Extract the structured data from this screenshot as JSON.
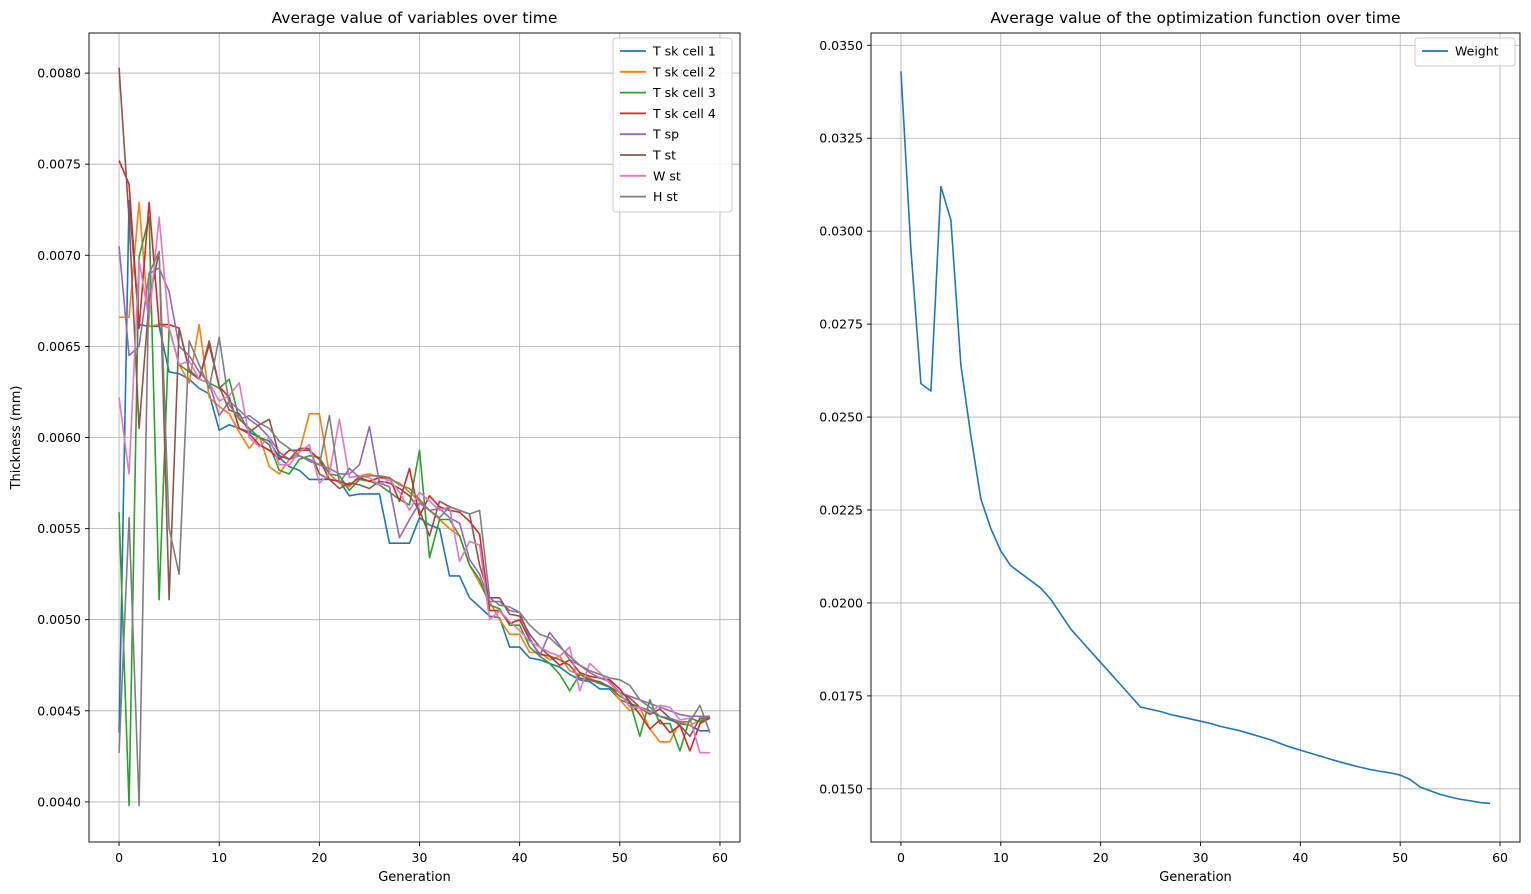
{
  "chart_data": [
    {
      "type": "line",
      "title": "Average value of variables over time",
      "xlabel": "Generation",
      "ylabel": "Thickness (mm)",
      "xlim": [
        -3,
        62
      ],
      "ylim": [
        0.00378,
        0.00822
      ],
      "xticks": [
        0,
        10,
        20,
        30,
        40,
        50,
        60
      ],
      "yticks": [
        0.004,
        0.0045,
        0.005,
        0.0055,
        0.006,
        0.0065,
        0.007,
        0.0075,
        0.008
      ],
      "ytick_labels": [
        "0.0040",
        "0.0045",
        "0.0050",
        "0.0055",
        "0.0060",
        "0.0065",
        "0.0070",
        "0.0075",
        "0.0080"
      ],
      "grid": true,
      "legend_position": "top-right",
      "x": [
        0,
        1,
        2,
        3,
        4,
        5,
        6,
        7,
        8,
        9,
        10,
        11,
        12,
        13,
        14,
        15,
        16,
        17,
        18,
        19,
        20,
        21,
        22,
        23,
        24,
        25,
        26,
        27,
        28,
        29,
        30,
        31,
        32,
        33,
        34,
        35,
        36,
        37,
        38,
        39,
        40,
        41,
        42,
        43,
        44,
        45,
        46,
        47,
        48,
        49,
        50,
        51,
        52,
        53,
        54,
        55,
        56,
        57,
        58,
        59
      ],
      "series": [
        {
          "name": "T sk cell 1",
          "color": "#1f77b4",
          "values": [
            0.00438,
            0.0073,
            0.00662,
            0.00661,
            0.00661,
            0.00636,
            0.00635,
            0.00632,
            0.00627,
            0.00624,
            0.00604,
            0.00607,
            0.00605,
            0.00603,
            0.006,
            0.00598,
            0.00589,
            0.00584,
            0.00582,
            0.00577,
            0.00577,
            0.00577,
            0.00576,
            0.00568,
            0.00569,
            0.00569,
            0.00569,
            0.00542,
            0.00542,
            0.00542,
            0.00556,
            0.00552,
            0.0055,
            0.00524,
            0.00524,
            0.00512,
            0.00507,
            0.00502,
            0.00501,
            0.00485,
            0.00485,
            0.00479,
            0.00478,
            0.00476,
            0.00474,
            0.0047,
            0.00467,
            0.00466,
            0.00462,
            0.00462,
            0.00456,
            0.00454,
            0.00452,
            0.0045,
            0.00447,
            0.00445,
            0.00443,
            0.00442,
            0.00439,
            0.00439
          ]
        },
        {
          "name": "T sk cell 2",
          "color": "#ff7f0e",
          "values": [
            0.00666,
            0.00666,
            0.00729,
            0.00661,
            0.00662,
            0.0066,
            0.0064,
            0.0063,
            0.00662,
            0.00622,
            0.00617,
            0.00613,
            0.00603,
            0.00594,
            0.00601,
            0.00584,
            0.0058,
            0.00588,
            0.00592,
            0.00613,
            0.00613,
            0.0058,
            0.00575,
            0.00573,
            0.00579,
            0.0058,
            0.00578,
            0.00577,
            0.00575,
            0.0057,
            0.00565,
            0.0056,
            0.00555,
            0.0055,
            0.00546,
            0.0053,
            0.0052,
            0.0051,
            0.005,
            0.00492,
            0.00492,
            0.00482,
            0.00482,
            0.00478,
            0.0048,
            0.00472,
            0.0047,
            0.00468,
            0.00465,
            0.00463,
            0.00456,
            0.0045,
            0.00452,
            0.0044,
            0.00433,
            0.00433,
            0.00444,
            0.00442,
            0.00445,
            0.00446
          ]
        },
        {
          "name": "T sk cell 3",
          "color": "#2ca02c",
          "values": [
            0.00559,
            0.00398,
            0.00699,
            0.00721,
            0.00511,
            0.0066,
            0.0064,
            0.00636,
            0.00632,
            0.0063,
            0.00627,
            0.00632,
            0.0061,
            0.00605,
            0.006,
            0.00596,
            0.00582,
            0.0058,
            0.00588,
            0.0059,
            0.00589,
            0.0058,
            0.00579,
            0.00571,
            0.00577,
            0.00576,
            0.00574,
            0.0057,
            0.00566,
            0.00563,
            0.00593,
            0.00534,
            0.00555,
            0.00555,
            0.00546,
            0.0053,
            0.00522,
            0.00508,
            0.00506,
            0.00497,
            0.00497,
            0.00485,
            0.0048,
            0.00476,
            0.0047,
            0.00461,
            0.0047,
            0.00467,
            0.00465,
            0.00463,
            0.00458,
            0.00455,
            0.00436,
            0.00456,
            0.00443,
            0.00443,
            0.00428,
            0.00446,
            0.00444,
            0.00447
          ]
        },
        {
          "name": "T sk cell 4",
          "color": "#d62728",
          "values": [
            0.00752,
            0.00739,
            0.0066,
            0.00729,
            0.00662,
            0.00662,
            0.0066,
            0.00637,
            0.00632,
            0.00651,
            0.00628,
            0.00622,
            0.00605,
            0.00602,
            0.00596,
            0.00593,
            0.00588,
            0.00593,
            0.00593,
            0.00593,
            0.00588,
            0.00577,
            0.00576,
            0.00574,
            0.00578,
            0.00576,
            0.00578,
            0.00578,
            0.00565,
            0.00583,
            0.00557,
            0.00568,
            0.00562,
            0.0056,
            0.00559,
            0.00554,
            0.00547,
            0.00505,
            0.00505,
            0.00498,
            0.005,
            0.00489,
            0.00481,
            0.0048,
            0.00475,
            0.00478,
            0.00471,
            0.00469,
            0.00468,
            0.00467,
            0.00462,
            0.00455,
            0.00448,
            0.0044,
            0.00445,
            0.00438,
            0.00442,
            0.00428,
            0.00443,
            0.00446
          ]
        },
        {
          "name": "T sp",
          "color": "#9467bd",
          "values": [
            0.00705,
            0.00645,
            0.0065,
            0.0069,
            0.00693,
            0.0068,
            0.0065,
            0.00645,
            0.00636,
            0.0063,
            0.00612,
            0.0062,
            0.00615,
            0.0061,
            0.00606,
            0.006,
            0.00592,
            0.00588,
            0.0059,
            0.00588,
            0.00585,
            0.00583,
            0.0058,
            0.0058,
            0.00585,
            0.00606,
            0.00575,
            0.00573,
            0.00545,
            0.00555,
            0.00564,
            0.0056,
            0.00561,
            0.00556,
            0.00553,
            0.00533,
            0.00525,
            0.0051,
            0.0051,
            0.00505,
            0.00504,
            0.0049,
            0.0048,
            0.00493,
            0.00486,
            0.00478,
            0.00475,
            0.00471,
            0.00468,
            0.00466,
            0.0046,
            0.00458,
            0.00456,
            0.00454,
            0.00452,
            0.0045,
            0.00448,
            0.00447,
            0.00447,
            0.00447
          ]
        },
        {
          "name": "T st",
          "color": "#8c564b",
          "values": [
            0.00803,
            0.0072,
            0.00605,
            0.00675,
            0.00702,
            0.00511,
            0.0066,
            0.00637,
            0.00632,
            0.00653,
            0.00628,
            0.00615,
            0.00613,
            0.00603,
            0.00607,
            0.0061,
            0.0059,
            0.00588,
            0.00594,
            0.00594,
            0.0058,
            0.00577,
            0.00572,
            0.00575,
            0.00574,
            0.00572,
            0.00576,
            0.00575,
            0.00572,
            0.00568,
            0.0056,
            0.00546,
            0.00565,
            0.00562,
            0.0056,
            0.00558,
            0.0053,
            0.00512,
            0.00512,
            0.00503,
            0.00502,
            0.00492,
            0.00485,
            0.0048,
            0.00478,
            0.00475,
            0.00468,
            0.00467,
            0.00466,
            0.00463,
            0.0046,
            0.00457,
            0.00452,
            0.00448,
            0.00451,
            0.00446,
            0.00442,
            0.00436,
            0.00446,
            0.00446
          ]
        },
        {
          "name": "W st",
          "color": "#e377c2",
          "values": [
            0.00622,
            0.0058,
            0.00697,
            0.00665,
            0.00721,
            0.0066,
            0.0064,
            0.00642,
            0.00632,
            0.0063,
            0.0062,
            0.00623,
            0.0063,
            0.006,
            0.00595,
            0.006,
            0.00585,
            0.00585,
            0.00592,
            0.00596,
            0.00575,
            0.0058,
            0.0061,
            0.00578,
            0.00579,
            0.00578,
            0.00574,
            0.00577,
            0.0057,
            0.0056,
            0.0057,
            0.00565,
            0.0056,
            0.00562,
            0.00532,
            0.00543,
            0.00541,
            0.005,
            0.00505,
            0.00499,
            0.00494,
            0.00488,
            0.00485,
            0.00482,
            0.0048,
            0.00485,
            0.00461,
            0.00476,
            0.00471,
            0.00465,
            0.0046,
            0.00452,
            0.00452,
            0.00449,
            0.00453,
            0.00452,
            0.00445,
            0.00446,
            0.00427,
            0.00427
          ]
        },
        {
          "name": "H st",
          "color": "#7f7f7f",
          "values": [
            0.00427,
            0.00556,
            0.00398,
            0.0069,
            0.00702,
            0.0055,
            0.00525,
            0.00653,
            0.0064,
            0.00627,
            0.00655,
            0.00618,
            0.0061,
            0.00612,
            0.00608,
            0.00605,
            0.00598,
            0.00594,
            0.0059,
            0.00587,
            0.00585,
            0.00612,
            0.00575,
            0.00583,
            0.00578,
            0.00579,
            0.00579,
            0.00578,
            0.00574,
            0.00572,
            0.00566,
            0.0056,
            0.00556,
            0.00562,
            0.0056,
            0.00558,
            0.0056,
            0.00512,
            0.00508,
            0.00507,
            0.00504,
            0.00497,
            0.00492,
            0.0049,
            0.00485,
            0.0048,
            0.00475,
            0.00472,
            0.0047,
            0.00468,
            0.00467,
            0.00464,
            0.00456,
            0.00452,
            0.00447,
            0.00446,
            0.00444,
            0.00444,
            0.00453,
            0.00438
          ]
        }
      ]
    },
    {
      "type": "line",
      "title": "Average value of the optimization function over time",
      "xlabel": "Generation",
      "ylabel": "",
      "xlim": [
        -3,
        62
      ],
      "ylim": [
        0.01357,
        0.03533
      ],
      "xticks": [
        0,
        10,
        20,
        30,
        40,
        50,
        60
      ],
      "yticks": [
        0.015,
        0.0175,
        0.02,
        0.0225,
        0.025,
        0.0275,
        0.03,
        0.0325,
        0.035
      ],
      "ytick_labels": [
        "0.0150",
        "0.0175",
        "0.0200",
        "0.0225",
        "0.0250",
        "0.0275",
        "0.0300",
        "0.0325",
        "0.0350"
      ],
      "grid": true,
      "legend_position": "top-right",
      "x": [
        0,
        1,
        2,
        3,
        4,
        5,
        6,
        7,
        8,
        9,
        10,
        11,
        12,
        13,
        14,
        15,
        16,
        17,
        18,
        19,
        20,
        21,
        22,
        23,
        24,
        25,
        26,
        27,
        28,
        29,
        30,
        31,
        32,
        33,
        34,
        35,
        36,
        37,
        38,
        39,
        40,
        41,
        42,
        43,
        44,
        45,
        46,
        47,
        48,
        49,
        50,
        51,
        52,
        53,
        54,
        55,
        56,
        57,
        58,
        59
      ],
      "series": [
        {
          "name": "Weight",
          "color": "#1f77b4",
          "values": [
            0.0343,
            0.0295,
            0.0259,
            0.0257,
            0.0312,
            0.0303,
            0.0264,
            0.0245,
            0.0228,
            0.022,
            0.0214,
            0.021,
            0.0208,
            0.0206,
            0.0204,
            0.0201,
            0.0197,
            0.0193,
            0.019,
            0.0187,
            0.0184,
            0.0181,
            0.0178,
            0.0175,
            0.0172,
            0.01714,
            0.01708,
            0.017,
            0.01694,
            0.01688,
            0.01682,
            0.01676,
            0.01668,
            0.01662,
            0.01656,
            0.01648,
            0.0164,
            0.01632,
            0.01622,
            0.01612,
            0.01604,
            0.01596,
            0.01588,
            0.0158,
            0.01572,
            0.01565,
            0.01558,
            0.01552,
            0.01547,
            0.01543,
            0.01537,
            0.01525,
            0.01505,
            0.01495,
            0.01485,
            0.01478,
            0.01472,
            0.01468,
            0.01463,
            0.01461
          ]
        }
      ]
    }
  ]
}
